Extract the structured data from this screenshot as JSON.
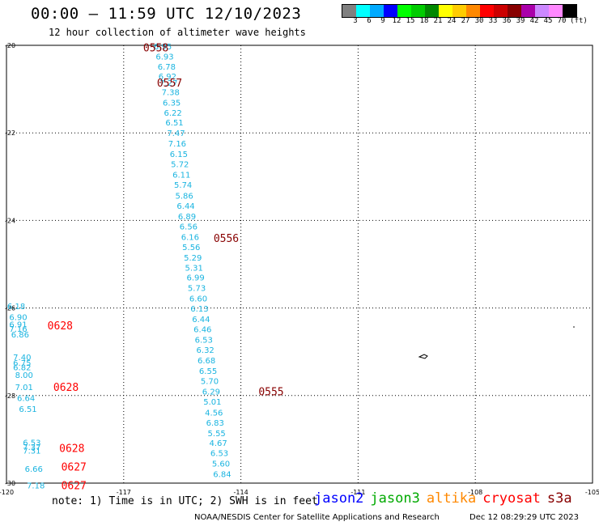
{
  "title": "00:00 – 11:59 UTC 12/10/2023",
  "subtitle": "12 hour collection of altimeter wave heights",
  "legend": {
    "colors": [
      "#808080",
      "#00ffff",
      "#00aaff",
      "#0000ff",
      "#00ff00",
      "#00cc00",
      "#008800",
      "#ffff00",
      "#ffcc00",
      "#ff8800",
      "#ff0000",
      "#cc0000",
      "#880000",
      "#aa00aa",
      "#cc88ff",
      "#ff88ff",
      "#000000"
    ],
    "labels": [
      "3",
      "6",
      "9",
      "12",
      "15",
      "18",
      "21",
      "24",
      "27",
      "30",
      "33",
      "36",
      "39",
      "42",
      "45",
      "70",
      "(ft)"
    ]
  },
  "map": {
    "lon_range": [
      -120,
      -105
    ],
    "lat_range": [
      -30,
      -20
    ],
    "lon_ticks": [
      "-120",
      "-117",
      "-114",
      "-111",
      "-108",
      "-105"
    ],
    "lat_ticks": [
      "-20",
      "-22",
      "-24",
      "-26",
      "-28",
      "-30"
    ],
    "grid": "dotted",
    "pass_labels": [
      {
        "text": "0558",
        "lon": -116.5,
        "lat": -20.05,
        "color": "#880000"
      },
      {
        "text": "0557",
        "lon": -116.15,
        "lat": -20.85,
        "color": "#880000"
      },
      {
        "text": "0556",
        "lon": -114.7,
        "lat": -24.4,
        "color": "#880000"
      },
      {
        "text": "0555",
        "lon": -113.55,
        "lat": -27.9,
        "color": "#880000"
      },
      {
        "text": "0628",
        "lon": -118.95,
        "lat": -26.4,
        "color": "#ff0000"
      },
      {
        "text": "0628",
        "lon": -118.8,
        "lat": -27.8,
        "color": "#ff0000"
      },
      {
        "text": "0628",
        "lon": -118.65,
        "lat": -29.2,
        "color": "#ff0000"
      },
      {
        "text": "0627",
        "lon": -118.6,
        "lat": -29.62,
        "color": "#ff0000"
      },
      {
        "text": "0627",
        "lon": -118.6,
        "lat": -30.05,
        "color": "#ff0000"
      }
    ],
    "observations": [
      {
        "v": "6.95",
        "lon": -116.0,
        "lat": -20.02
      },
      {
        "v": "6.93",
        "lon": -115.95,
        "lat": -20.25
      },
      {
        "v": "6.78",
        "lon": -115.9,
        "lat": -20.48
      },
      {
        "v": "6.92",
        "lon": -115.88,
        "lat": -20.7
      },
      {
        "v": "7.27",
        "lon": -115.85,
        "lat": -20.85
      },
      {
        "v": "7.38",
        "lon": -115.8,
        "lat": -21.06
      },
      {
        "v": "6.35",
        "lon": -115.77,
        "lat": -21.3
      },
      {
        "v": "6.22",
        "lon": -115.74,
        "lat": -21.53
      },
      {
        "v": "6.51",
        "lon": -115.7,
        "lat": -21.76
      },
      {
        "v": "7.47",
        "lon": -115.66,
        "lat": -22.0
      },
      {
        "v": "7.16",
        "lon": -115.63,
        "lat": -22.24
      },
      {
        "v": "6.15",
        "lon": -115.59,
        "lat": -22.48
      },
      {
        "v": "5.72",
        "lon": -115.56,
        "lat": -22.71
      },
      {
        "v": "6.11",
        "lon": -115.52,
        "lat": -22.95
      },
      {
        "v": "5.74",
        "lon": -115.48,
        "lat": -23.18
      },
      {
        "v": "5.86",
        "lon": -115.45,
        "lat": -23.43
      },
      {
        "v": "6.44",
        "lon": -115.41,
        "lat": -23.66
      },
      {
        "v": "6.89",
        "lon": -115.38,
        "lat": -23.9
      },
      {
        "v": "6.56",
        "lon": -115.34,
        "lat": -24.13
      },
      {
        "v": "6.16",
        "lon": -115.3,
        "lat": -24.37
      },
      {
        "v": "5.56",
        "lon": -115.27,
        "lat": -24.6
      },
      {
        "v": "5.29",
        "lon": -115.23,
        "lat": -24.84
      },
      {
        "v": "5.31",
        "lon": -115.2,
        "lat": -25.07
      },
      {
        "v": "6.99",
        "lon": -115.16,
        "lat": -25.3
      },
      {
        "v": "5.73",
        "lon": -115.13,
        "lat": -25.54
      },
      {
        "v": "6.60",
        "lon": -115.09,
        "lat": -25.78
      },
      {
        "v": "6.13",
        "lon": -115.06,
        "lat": -26.01
      },
      {
        "v": "6.44",
        "lon": -115.02,
        "lat": -26.25
      },
      {
        "v": "6.46",
        "lon": -114.98,
        "lat": -26.48
      },
      {
        "v": "6.53",
        "lon": -114.95,
        "lat": -26.72
      },
      {
        "v": "6.32",
        "lon": -114.91,
        "lat": -26.95
      },
      {
        "v": "6.68",
        "lon": -114.88,
        "lat": -27.19
      },
      {
        "v": "6.55",
        "lon": -114.84,
        "lat": -27.43
      },
      {
        "v": "5.70",
        "lon": -114.8,
        "lat": -27.66
      },
      {
        "v": "6.29",
        "lon": -114.76,
        "lat": -27.9
      },
      {
        "v": "5.01",
        "lon": -114.73,
        "lat": -28.13
      },
      {
        "v": "4.56",
        "lon": -114.69,
        "lat": -28.38
      },
      {
        "v": "6.83",
        "lon": -114.66,
        "lat": -28.61
      },
      {
        "v": "5.55",
        "lon": -114.62,
        "lat": -28.85
      },
      {
        "v": "4.67",
        "lon": -114.58,
        "lat": -29.08
      },
      {
        "v": "6.53",
        "lon": -114.55,
        "lat": -29.31
      },
      {
        "v": "5.60",
        "lon": -114.51,
        "lat": -29.55
      },
      {
        "v": "6.84",
        "lon": -114.48,
        "lat": -29.79
      },
      {
        "v": "6.18",
        "lon": -119.75,
        "lat": -25.95
      },
      {
        "v": "6.90",
        "lon": -119.7,
        "lat": -26.2
      },
      {
        "v": "6.91",
        "lon": -119.7,
        "lat": -26.37
      },
      {
        "v": "7.16",
        "lon": -119.7,
        "lat": -26.47
      },
      {
        "v": "6.86",
        "lon": -119.65,
        "lat": -26.6
      },
      {
        "v": "7.40",
        "lon": -119.6,
        "lat": -27.12
      },
      {
        "v": "6.75",
        "lon": -119.6,
        "lat": -27.25
      },
      {
        "v": "6.82",
        "lon": -119.6,
        "lat": -27.35
      },
      {
        "v": "8.00",
        "lon": -119.55,
        "lat": -27.52
      },
      {
        "v": "7.01",
        "lon": -119.55,
        "lat": -27.8
      },
      {
        "v": "6.64",
        "lon": -119.5,
        "lat": -28.05
      },
      {
        "v": "6.51",
        "lon": -119.45,
        "lat": -28.3
      },
      {
        "v": "6.53",
        "lon": -119.35,
        "lat": -29.07
      },
      {
        "v": "7.37",
        "lon": -119.35,
        "lat": -29.17
      },
      {
        "v": "7.31",
        "lon": -119.35,
        "lat": -29.25
      },
      {
        "v": "6.66",
        "lon": -119.3,
        "lat": -29.67
      },
      {
        "v": "7.18",
        "lon": -119.25,
        "lat": -30.05
      }
    ]
  },
  "note": "note: 1) Time is in UTC; 2) SWH is in feet",
  "satellites": [
    {
      "name": "jason2",
      "color": "#0000ff"
    },
    {
      "name": "jason3",
      "color": "#00aa00"
    },
    {
      "name": "altika",
      "color": "#ff8800"
    },
    {
      "name": "cryosat",
      "color": "#ff0000"
    },
    {
      "name": "s3a",
      "color": "#880000"
    }
  ],
  "footer": "NOAA/NESDIS Center for Satellite Applications and Research",
  "footer_date": "Dec 12 08:29:29 UTC 2023"
}
